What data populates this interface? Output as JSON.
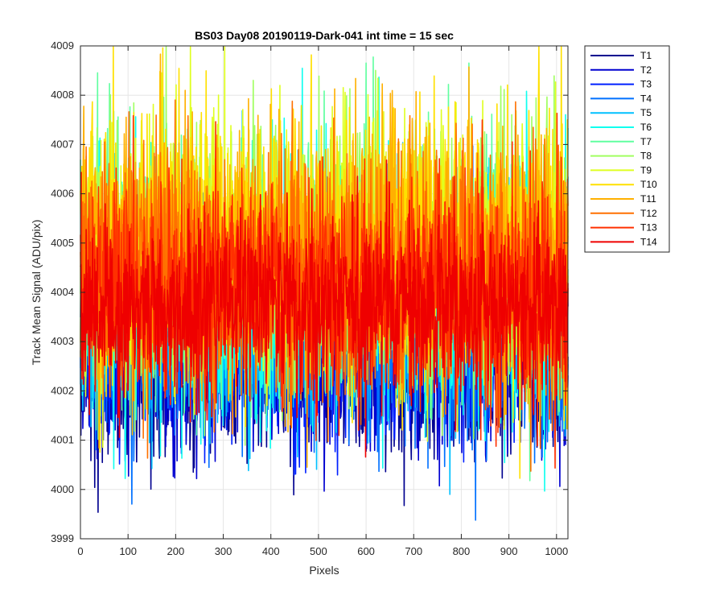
{
  "chart_data": {
    "type": "line",
    "title": "BS03 Day08 20190119-Dark-041 int time = 15 sec",
    "xlabel": "Pixels",
    "ylabel": "Track Mean Signal (ADU/pix)",
    "xlim": [
      0,
      1024
    ],
    "ylim": [
      3999,
      4009
    ],
    "xticks": [
      0,
      100,
      200,
      300,
      400,
      500,
      600,
      700,
      800,
      900,
      1000
    ],
    "yticks": [
      3999,
      4000,
      4001,
      4002,
      4003,
      4004,
      4005,
      4006,
      4007,
      4008,
      4009
    ],
    "grid": true,
    "legend_position": "outside-top-right",
    "series": [
      {
        "name": "T1",
        "color": "#00008f",
        "mean": 4002.6,
        "spread": 1.1
      },
      {
        "name": "T2",
        "color": "#0000d0",
        "mean": 4002.8,
        "spread": 1.1
      },
      {
        "name": "T3",
        "color": "#0020ff",
        "mean": 4003.0,
        "spread": 1.1
      },
      {
        "name": "T4",
        "color": "#0070ff",
        "mean": 4003.3,
        "spread": 1.2
      },
      {
        "name": "T5",
        "color": "#00c0ff",
        "mean": 4003.7,
        "spread": 1.3
      },
      {
        "name": "T6",
        "color": "#10ffef",
        "mean": 4004.1,
        "spread": 1.5
      },
      {
        "name": "T7",
        "color": "#60ffa0",
        "mean": 4004.4,
        "spread": 1.5
      },
      {
        "name": "T8",
        "color": "#a0ff60",
        "mean": 4004.6,
        "spread": 1.5
      },
      {
        "name": "T9",
        "color": "#dfff20",
        "mean": 4004.8,
        "spread": 1.5
      },
      {
        "name": "T10",
        "color": "#ffe000",
        "mean": 4004.9,
        "spread": 1.5
      },
      {
        "name": "T11",
        "color": "#ffb000",
        "mean": 4004.7,
        "spread": 1.4
      },
      {
        "name": "T12",
        "color": "#ff7000",
        "mean": 4004.4,
        "spread": 1.4
      },
      {
        "name": "T13",
        "color": "#ff3000",
        "mean": 4004.0,
        "spread": 1.2
      },
      {
        "name": "T14",
        "color": "#ef0000",
        "mean": 4003.7,
        "spread": 1.0
      }
    ]
  }
}
